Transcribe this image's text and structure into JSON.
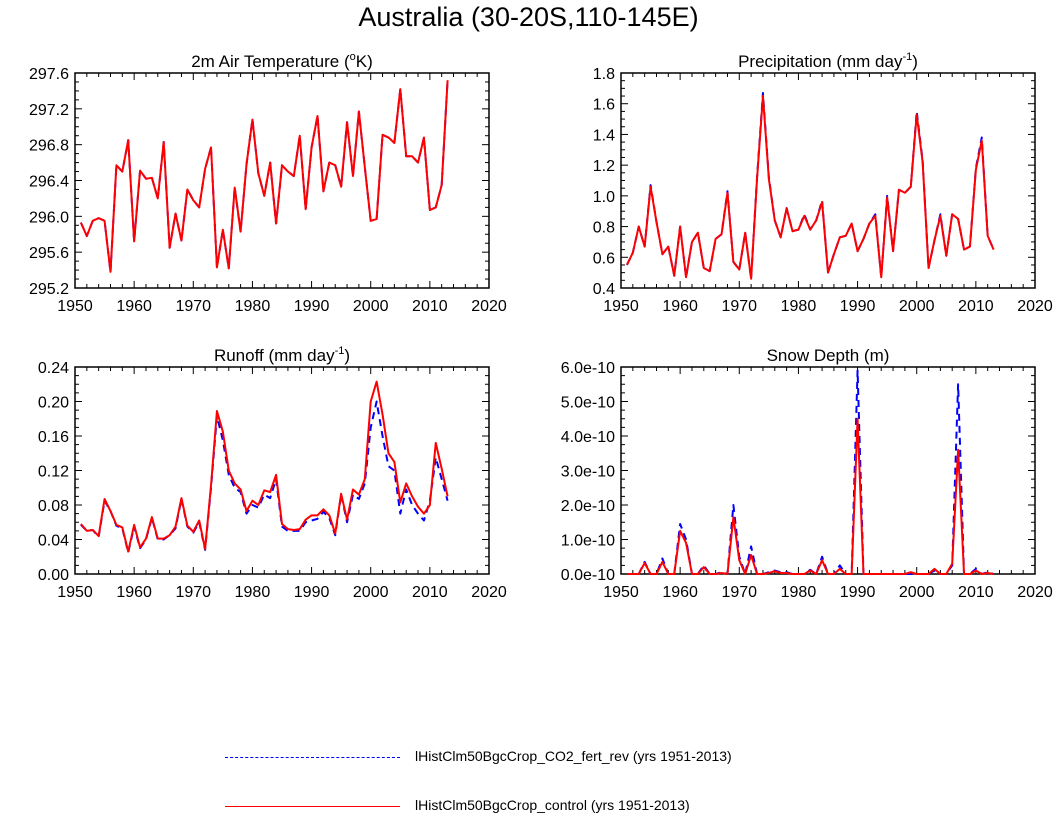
{
  "title": "Australia (30-20S,110-145E)",
  "colors": {
    "co2": "#0000ff",
    "control": "#ff0000",
    "axis": "#000000"
  },
  "legend": [
    {
      "series": "co2",
      "label": "lHistClm50BgcCrop_CO2_fert_rev (yrs 1951-2013)",
      "style": "dashed"
    },
    {
      "series": "control",
      "label": "lHistClm50BgcCrop_control (yrs 1951-2013)",
      "style": "solid"
    }
  ],
  "chart_data": [
    {
      "type": "line",
      "title": "2m Air Temperature (°K)",
      "title_parts": [
        "2m Air Temperature (",
        "o",
        "K)"
      ],
      "xlabel": "",
      "ylabel": "",
      "xlim": [
        1950,
        2020
      ],
      "ylim": [
        295.2,
        297.6
      ],
      "xticks": [
        1950,
        1960,
        1970,
        1980,
        1990,
        2000,
        2010,
        2020
      ],
      "yticks": [
        295.2,
        295.6,
        296.0,
        296.4,
        296.8,
        297.2,
        297.6
      ],
      "ytick_labels": [
        "295.2",
        "295.6",
        "296.0",
        "296.4",
        "296.8",
        "297.2",
        "297.6"
      ],
      "grid": false,
      "x_start": 1951,
      "series": [
        {
          "key": "co2",
          "style": "dashed",
          "values": [
            295.93,
            295.78,
            295.95,
            295.98,
            295.95,
            295.38,
            296.57,
            296.5,
            296.85,
            295.72,
            296.51,
            296.42,
            296.43,
            296.2,
            296.83,
            295.65,
            296.03,
            295.73,
            296.3,
            296.18,
            296.1,
            296.53,
            296.77,
            295.43,
            295.85,
            295.42,
            296.32,
            295.83,
            296.58,
            297.08,
            296.48,
            296.23,
            296.6,
            295.92,
            296.57,
            296.5,
            296.45,
            296.9,
            296.08,
            296.77,
            297.12,
            296.28,
            296.6,
            296.57,
            296.33,
            297.05,
            296.45,
            297.17,
            296.55,
            295.95,
            295.97,
            296.91,
            296.88,
            296.82,
            297.42,
            296.67,
            296.67,
            296.6,
            296.88,
            296.07,
            296.1,
            296.35,
            297.52
          ]
        },
        {
          "key": "control",
          "style": "solid",
          "values": [
            295.93,
            295.78,
            295.95,
            295.98,
            295.95,
            295.38,
            296.57,
            296.5,
            296.85,
            295.72,
            296.51,
            296.42,
            296.43,
            296.2,
            296.83,
            295.65,
            296.03,
            295.73,
            296.3,
            296.18,
            296.1,
            296.53,
            296.77,
            295.43,
            295.85,
            295.42,
            296.32,
            295.83,
            296.58,
            297.08,
            296.48,
            296.23,
            296.6,
            295.92,
            296.57,
            296.5,
            296.45,
            296.9,
            296.08,
            296.77,
            297.12,
            296.28,
            296.6,
            296.57,
            296.33,
            297.05,
            296.45,
            297.17,
            296.55,
            295.95,
            295.97,
            296.91,
            296.88,
            296.82,
            297.42,
            296.67,
            296.67,
            296.6,
            296.88,
            296.07,
            296.1,
            296.35,
            297.52
          ]
        }
      ]
    },
    {
      "type": "line",
      "title": "Precipitation (mm day-1)",
      "title_parts": [
        "Precipitation (mm day",
        "-1",
        ")"
      ],
      "xlabel": "",
      "ylabel": "",
      "xlim": [
        1950,
        2020
      ],
      "ylim": [
        0.4,
        1.8
      ],
      "xticks": [
        1950,
        1960,
        1970,
        1980,
        1990,
        2000,
        2010,
        2020
      ],
      "yticks": [
        0.4,
        0.6,
        0.8,
        1.0,
        1.2,
        1.4,
        1.6,
        1.8
      ],
      "ytick_labels": [
        "0.4",
        "0.6",
        "0.8",
        "1.0",
        "1.2",
        "1.4",
        "1.6",
        "1.8"
      ],
      "grid": false,
      "x_start": 1951,
      "series": [
        {
          "key": "co2",
          "style": "dashed",
          "values": [
            0.55,
            0.63,
            0.8,
            0.67,
            1.07,
            0.83,
            0.62,
            0.67,
            0.48,
            0.8,
            0.47,
            0.7,
            0.76,
            0.53,
            0.51,
            0.72,
            0.75,
            1.03,
            0.57,
            0.52,
            0.76,
            0.46,
            1.12,
            1.67,
            1.12,
            0.84,
            0.73,
            0.92,
            0.77,
            0.78,
            0.88,
            0.78,
            0.84,
            0.97,
            0.5,
            0.62,
            0.73,
            0.74,
            0.82,
            0.64,
            0.72,
            0.82,
            0.88,
            0.47,
            1.0,
            0.64,
            1.04,
            1.02,
            1.06,
            1.55,
            1.23,
            0.53,
            0.71,
            0.88,
            0.61,
            0.88,
            0.85,
            0.65,
            0.67,
            1.18,
            1.38,
            0.74,
            0.65
          ]
        },
        {
          "key": "control",
          "style": "solid",
          "values": [
            0.55,
            0.63,
            0.8,
            0.67,
            1.06,
            0.83,
            0.62,
            0.67,
            0.48,
            0.8,
            0.47,
            0.7,
            0.76,
            0.53,
            0.51,
            0.72,
            0.75,
            1.02,
            0.57,
            0.52,
            0.76,
            0.46,
            1.11,
            1.65,
            1.11,
            0.84,
            0.73,
            0.92,
            0.77,
            0.78,
            0.87,
            0.78,
            0.84,
            0.96,
            0.5,
            0.62,
            0.73,
            0.74,
            0.82,
            0.64,
            0.72,
            0.82,
            0.87,
            0.47,
            0.99,
            0.64,
            1.04,
            1.02,
            1.06,
            1.53,
            1.22,
            0.53,
            0.71,
            0.87,
            0.61,
            0.88,
            0.85,
            0.65,
            0.67,
            1.17,
            1.36,
            0.74,
            0.65
          ]
        }
      ]
    },
    {
      "type": "line",
      "title": "Runoff (mm day-1)",
      "title_parts": [
        "Runoff (mm day",
        "-1",
        ")"
      ],
      "xlabel": "",
      "ylabel": "",
      "xlim": [
        1950,
        2020
      ],
      "ylim": [
        0.0,
        0.24
      ],
      "xticks": [
        1950,
        1960,
        1970,
        1980,
        1990,
        2000,
        2010,
        2020
      ],
      "yticks": [
        0.0,
        0.04,
        0.08,
        0.12,
        0.16,
        0.2,
        0.24
      ],
      "ytick_labels": [
        "0.00",
        "0.04",
        "0.08",
        "0.12",
        "0.16",
        "0.20",
        "0.24"
      ],
      "grid": false,
      "x_start": 1951,
      "series": [
        {
          "key": "co2",
          "style": "dashed",
          "values": [
            0.057,
            0.05,
            0.051,
            0.043,
            0.085,
            0.073,
            0.056,
            0.053,
            0.025,
            0.055,
            0.03,
            0.04,
            0.065,
            0.04,
            0.04,
            0.045,
            0.053,
            0.087,
            0.055,
            0.048,
            0.06,
            0.028,
            0.1,
            0.183,
            0.155,
            0.115,
            0.1,
            0.095,
            0.07,
            0.08,
            0.077,
            0.092,
            0.088,
            0.11,
            0.055,
            0.05,
            0.05,
            0.05,
            0.06,
            0.062,
            0.064,
            0.072,
            0.065,
            0.045,
            0.092,
            0.06,
            0.092,
            0.087,
            0.105,
            0.17,
            0.2,
            0.16,
            0.125,
            0.12,
            0.07,
            0.098,
            0.08,
            0.07,
            0.062,
            0.085,
            0.135,
            0.11,
            0.085
          ]
        },
        {
          "key": "control",
          "style": "solid",
          "values": [
            0.058,
            0.05,
            0.051,
            0.044,
            0.087,
            0.073,
            0.057,
            0.054,
            0.026,
            0.057,
            0.031,
            0.041,
            0.066,
            0.041,
            0.041,
            0.045,
            0.055,
            0.088,
            0.056,
            0.049,
            0.062,
            0.029,
            0.103,
            0.189,
            0.165,
            0.12,
            0.105,
            0.098,
            0.073,
            0.085,
            0.08,
            0.097,
            0.095,
            0.115,
            0.058,
            0.052,
            0.051,
            0.052,
            0.063,
            0.068,
            0.068,
            0.075,
            0.068,
            0.047,
            0.093,
            0.063,
            0.098,
            0.092,
            0.11,
            0.2,
            0.223,
            0.185,
            0.14,
            0.13,
            0.083,
            0.105,
            0.09,
            0.078,
            0.07,
            0.08,
            0.152,
            0.122,
            0.09
          ]
        }
      ]
    },
    {
      "type": "line",
      "title": "Snow Depth (m)",
      "title_parts": [
        "Snow Depth (m)",
        "",
        ""
      ],
      "xlabel": "",
      "ylabel": "",
      "xlim": [
        1950,
        2020
      ],
      "ylim": [
        0,
        6e-10
      ],
      "xticks": [
        1950,
        1960,
        1970,
        1980,
        1990,
        2000,
        2010,
        2020
      ],
      "yticks": [
        0,
        1e-10,
        2e-10,
        3e-10,
        4e-10,
        5e-10,
        6e-10
      ],
      "ytick_labels": [
        "0.0e-10",
        "1.0e-10",
        "2.0e-10",
        "3.0e-10",
        "4.0e-10",
        "5.0e-10",
        "6.0e-10"
      ],
      "grid": false,
      "x_start": 1951,
      "series": [
        {
          "key": "co2",
          "style": "dashed",
          "values": [
            0,
            0,
            0,
            3.5e-11,
            0,
            0,
            4.5e-11,
            0,
            0,
            1.45e-10,
            1e-10,
            0,
            0,
            2.5e-11,
            0,
            0,
            5e-12,
            0,
            2e-10,
            5e-11,
            0,
            8e-11,
            0,
            0,
            5e-12,
            1e-11,
            5e-12,
            5e-12,
            0,
            0,
            0,
            1.2e-11,
            0,
            5e-11,
            0,
            0,
            2.5e-11,
            0,
            0,
            5.9e-10,
            0,
            0,
            0,
            0,
            0,
            0,
            0,
            0,
            0,
            0,
            0,
            0,
            1e-11,
            0,
            0,
            2.5e-11,
            5.5e-10,
            0,
            0,
            1.5e-11,
            0,
            5e-12,
            0
          ]
        },
        {
          "key": "control",
          "style": "solid",
          "values": [
            0,
            0,
            0,
            3.2e-11,
            0,
            0,
            3.5e-11,
            0,
            0,
            1.25e-10,
            9e-11,
            0,
            0,
            2e-11,
            0,
            0,
            3e-12,
            0,
            1.65e-10,
            4e-11,
            0,
            5.5e-11,
            0,
            0,
            3e-12,
            8e-12,
            3e-12,
            3e-12,
            0,
            0,
            0,
            1e-11,
            0,
            4e-11,
            0,
            0,
            1.5e-11,
            0,
            0,
            4.5e-10,
            0,
            0,
            0,
            0,
            0,
            0,
            0,
            0,
            5e-12,
            0,
            0,
            0,
            1.5e-11,
            0,
            0,
            3e-11,
            3.6e-10,
            0,
            0,
            1e-11,
            0,
            3e-12,
            0
          ]
        }
      ]
    }
  ]
}
